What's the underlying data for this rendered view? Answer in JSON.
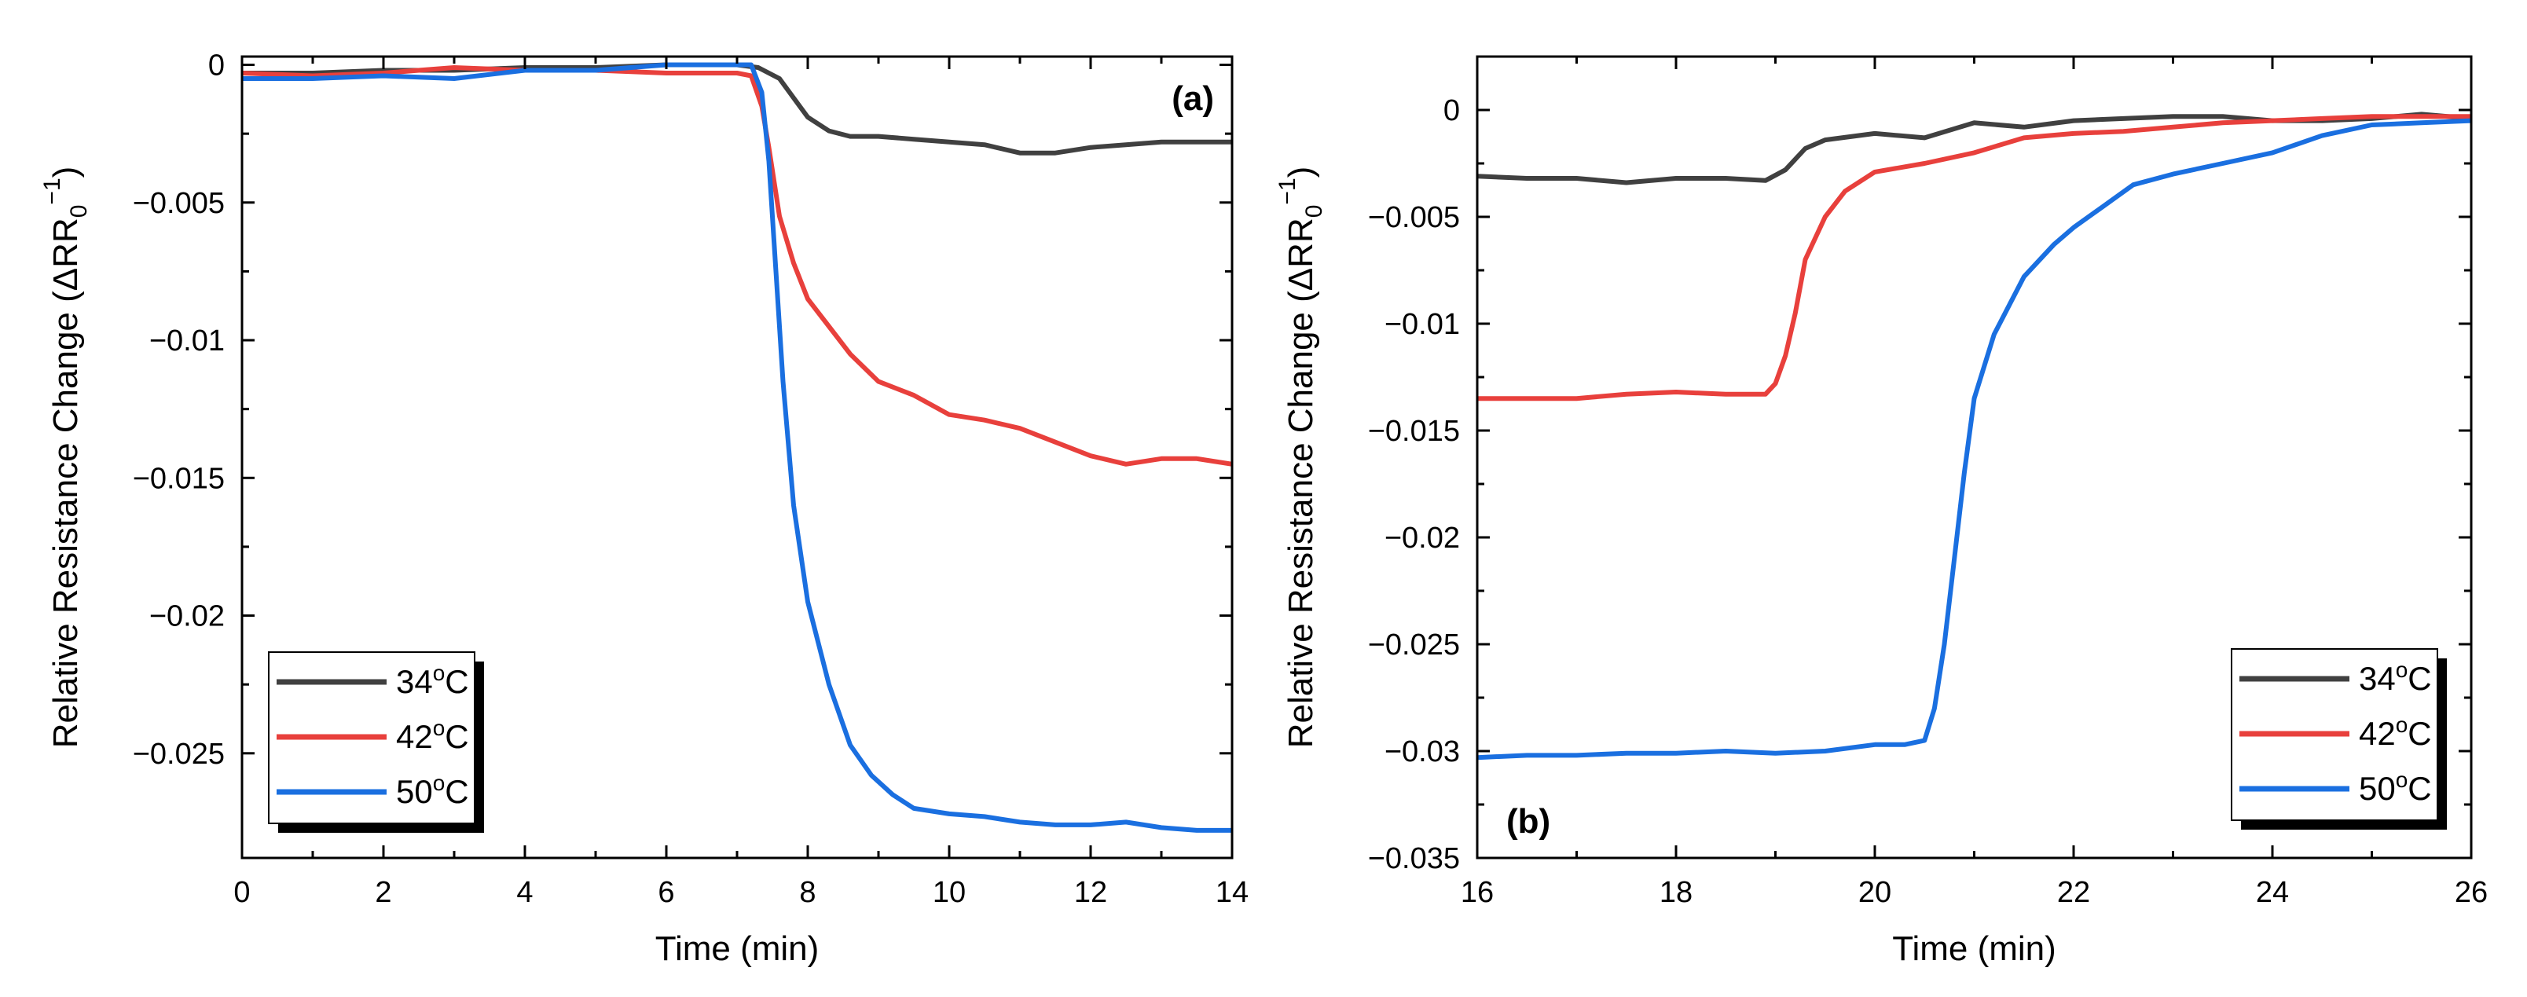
{
  "chart_data": [
    {
      "panel": "(a)",
      "type": "line",
      "xlabel": "Time (min)",
      "ylabel_main": "Relative Resistance Change (ΔRR",
      "ylabel_sub": "0",
      "ylabel_sup": "−1",
      "ylabel_close": ")",
      "xlim": [
        0,
        14
      ],
      "ylim": [
        -0.0288,
        0.0003
      ],
      "xticks": [
        0,
        2,
        4,
        6,
        8,
        10,
        12,
        14
      ],
      "xtick_labels": [
        "0",
        "2",
        "4",
        "6",
        "8",
        "10",
        "12",
        "14"
      ],
      "yticks": [
        0,
        -0.005,
        -0.01,
        -0.015,
        -0.02,
        -0.025
      ],
      "ytick_labels": [
        "0",
        "−0.005",
        "−0.01",
        "−0.015",
        "−0.02",
        "−0.025"
      ],
      "legend_position": "bottom-left",
      "series": [
        {
          "name": "34",
          "unit_sup": "o",
          "unit": "C",
          "color": "#404040",
          "x": [
            0,
            1,
            2,
            3,
            4,
            5,
            6,
            7,
            7.3,
            7.6,
            7.8,
            8.0,
            8.3,
            8.6,
            9.0,
            9.5,
            10,
            10.5,
            11,
            11.5,
            12,
            12.5,
            13,
            13.5,
            14
          ],
          "y": [
            -0.0003,
            -0.0003,
            -0.0002,
            -0.0002,
            -0.0001,
            -0.0001,
            0,
            0,
            -0.0001,
            -0.0005,
            -0.0012,
            -0.0019,
            -0.0024,
            -0.0026,
            -0.0026,
            -0.0027,
            -0.0028,
            -0.0029,
            -0.0032,
            -0.0032,
            -0.003,
            -0.0029,
            -0.0028,
            -0.0028,
            -0.0028
          ]
        },
        {
          "name": "42",
          "unit_sup": "o",
          "unit": "C",
          "color": "#e8403c",
          "x": [
            0,
            1,
            2,
            3,
            4,
            5,
            6,
            7,
            7.2,
            7.35,
            7.45,
            7.6,
            7.8,
            8.0,
            8.3,
            8.6,
            9.0,
            9.5,
            10,
            10.5,
            11,
            11.5,
            12,
            12.5,
            13,
            13.5,
            14
          ],
          "y": [
            -0.0003,
            -0.0004,
            -0.0003,
            -0.0001,
            -0.0002,
            -0.0002,
            -0.0003,
            -0.0003,
            -0.0004,
            -0.0015,
            -0.003,
            -0.0055,
            -0.0072,
            -0.0085,
            -0.0095,
            -0.0105,
            -0.0115,
            -0.012,
            -0.0127,
            -0.0129,
            -0.0132,
            -0.0137,
            -0.0142,
            -0.0145,
            -0.0143,
            -0.0143,
            -0.0145
          ]
        },
        {
          "name": "50",
          "unit_sup": "o",
          "unit": "C",
          "color": "#1a6fe0",
          "x": [
            0,
            1,
            2,
            3,
            4,
            5,
            6,
            7,
            7.2,
            7.35,
            7.45,
            7.55,
            7.65,
            7.8,
            8.0,
            8.3,
            8.6,
            8.9,
            9.2,
            9.5,
            10,
            10.5,
            11,
            11.5,
            12,
            12.5,
            13,
            13.5,
            14
          ],
          "y": [
            -0.0005,
            -0.0005,
            -0.0004,
            -0.0005,
            -0.0002,
            -0.0002,
            0,
            0,
            0,
            -0.001,
            -0.0035,
            -0.0075,
            -0.0115,
            -0.016,
            -0.0195,
            -0.0225,
            -0.0247,
            -0.0258,
            -0.0265,
            -0.027,
            -0.0272,
            -0.0273,
            -0.0275,
            -0.0276,
            -0.0276,
            -0.0275,
            -0.0277,
            -0.0278,
            -0.0278
          ]
        }
      ]
    },
    {
      "panel": "(b)",
      "type": "line",
      "xlabel": "Time (min)",
      "ylabel_main": "Relative Resistance Change (ΔRR",
      "ylabel_sub": "0",
      "ylabel_sup": "−1",
      "ylabel_close": ")",
      "xlim": [
        16,
        26
      ],
      "ylim": [
        -0.035,
        0.0025
      ],
      "xticks": [
        16,
        18,
        20,
        22,
        24,
        26
      ],
      "xtick_labels": [
        "16",
        "18",
        "20",
        "22",
        "24",
        "26"
      ],
      "yticks": [
        0,
        -0.005,
        -0.01,
        -0.015,
        -0.02,
        -0.025,
        -0.03,
        -0.035
      ],
      "ytick_labels": [
        "0",
        "−0.005",
        "−0.01",
        "−0.015",
        "−0.02",
        "−0.025",
        "−0.03",
        "−0.035"
      ],
      "legend_position": "bottom-right",
      "series": [
        {
          "name": "34",
          "unit_sup": "o",
          "unit": "C",
          "color": "#404040",
          "x": [
            16,
            16.5,
            17,
            17.5,
            18,
            18.5,
            18.9,
            19.1,
            19.3,
            19.5,
            20,
            20.5,
            21,
            21.5,
            22,
            22.5,
            23,
            23.5,
            24,
            24.5,
            25,
            25.5,
            26
          ],
          "y": [
            -0.0031,
            -0.0032,
            -0.0032,
            -0.0034,
            -0.0032,
            -0.0032,
            -0.0033,
            -0.0028,
            -0.0018,
            -0.0014,
            -0.0011,
            -0.0013,
            -0.0006,
            -0.0008,
            -0.0005,
            -0.0004,
            -0.0003,
            -0.0003,
            -0.0005,
            -0.0005,
            -0.0004,
            -0.0002,
            -0.0004
          ]
        },
        {
          "name": "42",
          "unit_sup": "o",
          "unit": "C",
          "color": "#e8403c",
          "x": [
            16,
            16.5,
            17,
            17.5,
            18,
            18.5,
            18.9,
            19.0,
            19.1,
            19.2,
            19.3,
            19.5,
            19.7,
            20,
            20.5,
            21,
            21.5,
            22,
            22.5,
            23,
            23.5,
            24,
            24.5,
            25,
            25.5,
            26
          ],
          "y": [
            -0.0135,
            -0.0135,
            -0.0135,
            -0.0133,
            -0.0132,
            -0.0133,
            -0.0133,
            -0.0128,
            -0.0115,
            -0.0095,
            -0.007,
            -0.005,
            -0.0038,
            -0.0029,
            -0.0025,
            -0.002,
            -0.0013,
            -0.0011,
            -0.001,
            -0.0008,
            -0.0006,
            -0.0005,
            -0.0004,
            -0.0003,
            -0.0003,
            -0.0003
          ]
        },
        {
          "name": "50",
          "unit_sup": "o",
          "unit": "C",
          "color": "#1a6fe0",
          "x": [
            16,
            16.5,
            17,
            17.5,
            18,
            18.5,
            19,
            19.5,
            20,
            20.3,
            20.5,
            20.6,
            20.7,
            20.8,
            20.9,
            21.0,
            21.2,
            21.5,
            21.8,
            22,
            22.3,
            22.6,
            23,
            23.5,
            24,
            24.5,
            25,
            25.5,
            26
          ],
          "y": [
            -0.0303,
            -0.0302,
            -0.0302,
            -0.0301,
            -0.0301,
            -0.03,
            -0.0301,
            -0.03,
            -0.0297,
            -0.0297,
            -0.0295,
            -0.028,
            -0.025,
            -0.021,
            -0.017,
            -0.0135,
            -0.0105,
            -0.0078,
            -0.0063,
            -0.0055,
            -0.0045,
            -0.0035,
            -0.003,
            -0.0025,
            -0.002,
            -0.0012,
            -0.0007,
            -0.0006,
            -0.0005
          ]
        }
      ]
    }
  ]
}
